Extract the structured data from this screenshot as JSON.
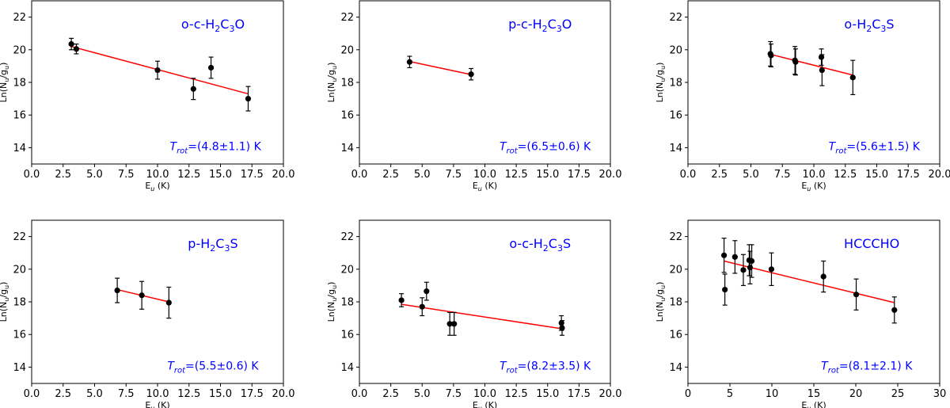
{
  "chart_data": [
    {
      "type": "scatter",
      "molecule": [
        "o-c-H",
        "2",
        "C",
        "3",
        "O"
      ],
      "trot": [
        "T",
        "rot",
        "=(4.8±1.1) K"
      ],
      "xlabel": [
        "E",
        "u",
        " (K)"
      ],
      "ylabel": [
        "Ln(N",
        "u",
        "/g",
        "u",
        ")"
      ],
      "xlim": [
        0,
        20
      ],
      "ylim": [
        13,
        23
      ],
      "xticks": [
        0,
        2.5,
        5,
        7.5,
        10,
        12.5,
        15,
        17.5,
        20
      ],
      "xtick_labels": [
        "0.0",
        "2.5",
        "5.0",
        "7.5",
        "10.0",
        "12.5",
        "15.0",
        "17.5",
        "20.0"
      ],
      "yticks": [
        14,
        16,
        18,
        20,
        22
      ],
      "ytick_labels": [
        "14",
        "16",
        "18",
        "20",
        "22"
      ],
      "points": [
        {
          "x": 3.15,
          "y": 20.35,
          "err": 0.35
        },
        {
          "x": 3.55,
          "y": 20.05,
          "err": 0.3
        },
        {
          "x": 10.0,
          "y": 18.75,
          "err": 0.55
        },
        {
          "x": 12.85,
          "y": 17.6,
          "err": 0.65
        },
        {
          "x": 14.25,
          "y": 18.9,
          "err": 0.65
        },
        {
          "x": 17.2,
          "y": 17.0,
          "err": 0.75
        }
      ],
      "fit": {
        "x": [
          3.15,
          17.2
        ],
        "y": [
          20.2,
          17.3
        ]
      }
    },
    {
      "type": "scatter",
      "molecule": [
        "p-c-H",
        "2",
        "C",
        "3",
        "O"
      ],
      "trot": [
        "T",
        "rot",
        "=(6.5±0.6) K"
      ],
      "xlabel": [
        "E",
        "u",
        " (K)"
      ],
      "ylabel": [
        "Ln(N",
        "u",
        "/g",
        "u",
        ")"
      ],
      "xlim": [
        0,
        20
      ],
      "ylim": [
        13,
        23
      ],
      "xticks": [
        0,
        2.5,
        5,
        7.5,
        10,
        12.5,
        15,
        17.5,
        20
      ],
      "xtick_labels": [
        "0.0",
        "2.5",
        "5.0",
        "7.5",
        "10.0",
        "12.5",
        "15.0",
        "17.5",
        "20.0"
      ],
      "yticks": [
        14,
        16,
        18,
        20,
        22
      ],
      "ytick_labels": [
        "14",
        "16",
        "18",
        "20",
        "22"
      ],
      "points": [
        {
          "x": 4.0,
          "y": 19.25,
          "err": 0.35
        },
        {
          "x": 8.9,
          "y": 18.5,
          "err": 0.35
        }
      ],
      "fit": {
        "x": [
          4.0,
          8.9
        ],
        "y": [
          19.28,
          18.48
        ]
      }
    },
    {
      "type": "scatter",
      "molecule": [
        "o-H",
        "2",
        "C",
        "3",
        "S"
      ],
      "trot": [
        "T",
        "rot",
        "=(5.6±1.5) K"
      ],
      "xlabel": [
        "E",
        "u",
        " (K)"
      ],
      "ylabel": [
        "Ln(N",
        "u",
        "/g",
        "u",
        ")"
      ],
      "xlim": [
        0,
        20
      ],
      "ylim": [
        13,
        23
      ],
      "xticks": [
        0,
        2.5,
        5,
        7.5,
        10,
        12.5,
        15,
        17.5,
        20
      ],
      "xtick_labels": [
        "0.0",
        "2.5",
        "5.0",
        "7.5",
        "10.0",
        "12.5",
        "15.0",
        "17.5",
        "20.0"
      ],
      "yticks": [
        14,
        16,
        18,
        20,
        22
      ],
      "ytick_labels": [
        "14",
        "16",
        "18",
        "20",
        "22"
      ],
      "points": [
        {
          "x": 6.55,
          "y": 19.75,
          "err": 0.75
        },
        {
          "x": 6.6,
          "y": 19.65,
          "err": 0.7
        },
        {
          "x": 8.5,
          "y": 19.35,
          "err": 0.85
        },
        {
          "x": 8.55,
          "y": 19.25,
          "err": 0.8
        },
        {
          "x": 10.6,
          "y": 19.55,
          "err": 0.5
        },
        {
          "x": 10.65,
          "y": 18.75,
          "err": 0.95
        },
        {
          "x": 13.1,
          "y": 18.3,
          "err": 1.05
        }
      ],
      "fit": {
        "x": [
          6.55,
          13.1
        ],
        "y": [
          19.72,
          18.45
        ]
      }
    },
    {
      "type": "scatter",
      "molecule": [
        "p-H",
        "2",
        "C",
        "3",
        "S"
      ],
      "trot": [
        "T",
        "rot",
        "=(5.5±0.6) K"
      ],
      "xlabel": [
        "E",
        "u",
        " (K)"
      ],
      "ylabel": [
        "Ln(N",
        "u",
        "/g",
        "u",
        ")"
      ],
      "xlim": [
        0,
        20
      ],
      "ylim": [
        13,
        23
      ],
      "xticks": [
        0,
        2.5,
        5,
        7.5,
        10,
        12.5,
        15,
        17.5,
        20
      ],
      "xtick_labels": [
        "0.0",
        "2.5",
        "5.0",
        "7.5",
        "10.0",
        "12.5",
        "15.0",
        "17.5",
        "20.0"
      ],
      "yticks": [
        14,
        16,
        18,
        20,
        22
      ],
      "ytick_labels": [
        "14",
        "16",
        "18",
        "20",
        "22"
      ],
      "points": [
        {
          "x": 6.8,
          "y": 18.7,
          "err": 0.75
        },
        {
          "x": 8.75,
          "y": 18.4,
          "err": 0.85
        },
        {
          "x": 10.9,
          "y": 17.95,
          "err": 0.95
        }
      ],
      "fit": {
        "x": [
          6.8,
          10.9
        ],
        "y": [
          18.75,
          18.0
        ]
      }
    },
    {
      "type": "scatter",
      "molecule": [
        "o-c-H",
        "2",
        "C",
        "3",
        "S"
      ],
      "trot": [
        "T",
        "rot",
        "=(8.2±3.5) K"
      ],
      "xlabel": [
        "E",
        "u",
        " (K)"
      ],
      "ylabel": [
        "Ln(N",
        "u",
        "/g",
        "u",
        ")"
      ],
      "xlim": [
        0,
        20
      ],
      "ylim": [
        13,
        23
      ],
      "xticks": [
        0,
        2.5,
        5,
        7.5,
        10,
        12.5,
        15,
        17.5,
        20
      ],
      "xtick_labels": [
        "0.0",
        "2.5",
        "5.0",
        "7.5",
        "10.0",
        "12.5",
        "15.0",
        "17.5",
        "20.0"
      ],
      "yticks": [
        14,
        16,
        18,
        20,
        22
      ],
      "ytick_labels": [
        "14",
        "16",
        "18",
        "20",
        "22"
      ],
      "points": [
        {
          "x": 3.35,
          "y": 18.1,
          "err": 0.4
        },
        {
          "x": 5.0,
          "y": 17.7,
          "err": 0.55
        },
        {
          "x": 5.35,
          "y": 18.65,
          "err": 0.55
        },
        {
          "x": 7.2,
          "y": 16.65,
          "err": 0.7
        },
        {
          "x": 7.55,
          "y": 16.65,
          "err": 0.7
        },
        {
          "x": 16.1,
          "y": 16.7,
          "err": 0.45
        },
        {
          "x": 16.15,
          "y": 16.4,
          "err": 0.45
        }
      ],
      "fit": {
        "x": [
          3.35,
          16.15
        ],
        "y": [
          17.85,
          16.35
        ]
      }
    },
    {
      "type": "scatter",
      "molecule": [
        "HCCCHO"
      ],
      "trot": [
        "T",
        "rot",
        "=(8.1±2.1) K"
      ],
      "xlabel": [
        "E",
        "u",
        " (K)"
      ],
      "ylabel": [
        "Ln(N",
        "u",
        "/g",
        "u",
        ")"
      ],
      "xlim": [
        0,
        30
      ],
      "ylim": [
        13,
        23
      ],
      "xticks": [
        0,
        5,
        10,
        15,
        20,
        25,
        30
      ],
      "xtick_labels": [
        "0",
        "5",
        "10",
        "15",
        "20",
        "25",
        "30"
      ],
      "yticks": [
        14,
        16,
        18,
        20,
        22
      ],
      "ytick_labels": [
        "14",
        "16",
        "18",
        "20",
        "22"
      ],
      "points": [
        {
          "x": 4.3,
          "y": 20.85,
          "err": 1.05
        },
        {
          "x": 4.4,
          "y": 18.75,
          "err": 0.95
        },
        {
          "x": 5.6,
          "y": 20.75,
          "err": 1.0
        },
        {
          "x": 6.6,
          "y": 19.95,
          "err": 0.95
        },
        {
          "x": 7.3,
          "y": 20.55,
          "err": 0.95
        },
        {
          "x": 7.4,
          "y": 20.1,
          "err": 1.0
        },
        {
          "x": 7.6,
          "y": 20.5,
          "err": 1.0
        },
        {
          "x": 9.95,
          "y": 20.0,
          "err": 1.0
        },
        {
          "x": 16.15,
          "y": 19.55,
          "err": 0.95
        },
        {
          "x": 20.05,
          "y": 18.45,
          "err": 0.95
        },
        {
          "x": 24.6,
          "y": 17.5,
          "err": 0.8
        }
      ],
      "fit": {
        "x": [
          4.3,
          24.6
        ],
        "y": [
          20.5,
          17.95
        ]
      }
    }
  ],
  "colors": {
    "marker": "#000000",
    "fit": "#ff0000",
    "label": "#0000ff",
    "axes": "#000000"
  }
}
